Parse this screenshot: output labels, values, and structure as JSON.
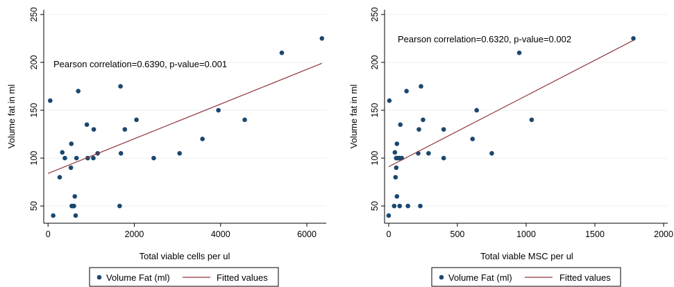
{
  "colors": {
    "marker": "#1a476f",
    "fit_line": "#90353b",
    "grid": "#eaf2f3",
    "axis": "#000000"
  },
  "chart_data": [
    {
      "type": "scatter",
      "xlabel": "Total viable cells per ul",
      "ylabel": "Volume fat in ml",
      "annotation": "Pearson correlation=0.6390, p-value=0.001",
      "xlim": [
        -100,
        6450
      ],
      "ylim": [
        32,
        255
      ],
      "xticks": [
        0,
        2000,
        4000,
        6000
      ],
      "yticks": [
        50,
        100,
        150,
        200,
        250
      ],
      "grid": "horizontal",
      "legend_position": "bottom",
      "legend": [
        "Volume Fat (ml)",
        "Fitted values"
      ],
      "series": [
        {
          "name": "Volume Fat (ml)",
          "type": "scatter",
          "x": [
            120,
            50,
            270,
            330,
            390,
            530,
            540,
            570,
            590,
            620,
            640,
            700,
            550,
            600,
            660,
            900,
            920,
            1050,
            1060,
            1150,
            1660,
            1690,
            1680,
            1780,
            2050,
            2450,
            3050,
            3580,
            3950,
            4560,
            5420,
            6350
          ],
          "y": [
            40,
            160,
            80,
            106,
            100,
            90,
            115,
            50,
            50,
            60,
            40,
            170,
            50,
            50,
            100,
            135,
            100,
            100,
            130,
            105,
            50,
            105,
            175,
            130,
            140,
            100,
            105,
            120,
            150,
            140,
            210,
            225
          ]
        },
        {
          "name": "Fitted values",
          "type": "line",
          "x": [
            0,
            6350
          ],
          "y": [
            84,
            199
          ]
        }
      ]
    },
    {
      "type": "scatter",
      "xlabel": "Total viable MSC per ul",
      "ylabel": "Volume fat in ml",
      "annotation": "Pearson correlation=0.6320, p-value=0.002",
      "xlim": [
        -30,
        2030
      ],
      "ylim": [
        32,
        255
      ],
      "xticks": [
        0,
        500,
        1000,
        1500,
        2000
      ],
      "yticks": [
        50,
        100,
        150,
        200,
        250
      ],
      "grid": "horizontal",
      "legend_position": "bottom",
      "legend": [
        "Volume Fat (ml)",
        "Fitted values"
      ],
      "series": [
        {
          "name": "Volume Fat (ml)",
          "type": "scatter",
          "x": [
            0,
            5,
            40,
            45,
            50,
            55,
            55,
            60,
            60,
            65,
            75,
            80,
            80,
            85,
            95,
            130,
            140,
            215,
            220,
            230,
            235,
            250,
            290,
            400,
            400,
            610,
            640,
            750,
            950,
            1040,
            1780
          ],
          "y": [
            40,
            160,
            50,
            106,
            80,
            90,
            100,
            60,
            115,
            100,
            100,
            100,
            50,
            135,
            100,
            170,
            50,
            105,
            130,
            50,
            175,
            140,
            105,
            130,
            100,
            120,
            150,
            105,
            210,
            140,
            225
          ]
        },
        {
          "name": "Fitted values",
          "type": "line",
          "x": [
            0,
            1780
          ],
          "y": [
            91,
            223
          ]
        }
      ]
    }
  ]
}
